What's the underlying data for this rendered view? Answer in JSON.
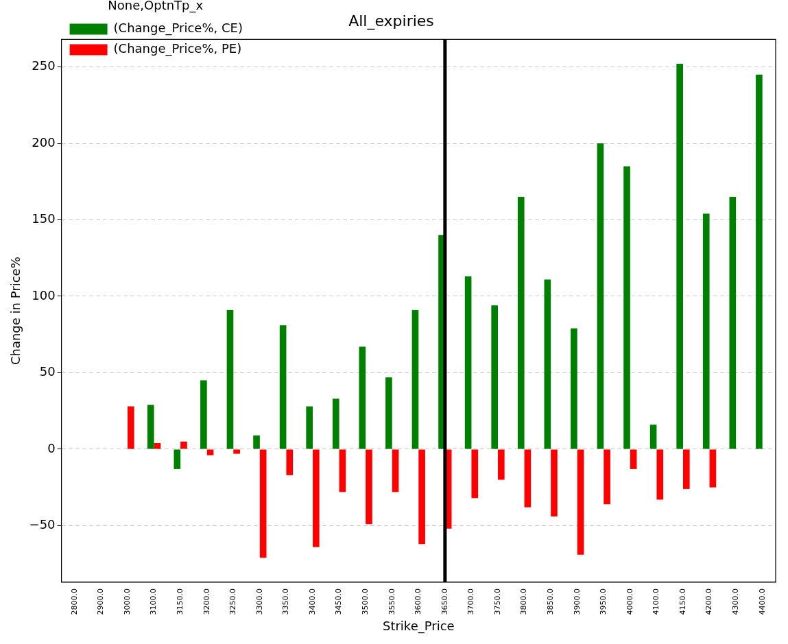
{
  "chart_data": {
    "type": "bar",
    "title": "All_expiries",
    "xlabel": "Strike_Price",
    "ylabel": "Change in Price%",
    "legend_title": "None,OptnTp_x",
    "categories": [
      "2800.0",
      "2900.0",
      "3000.0",
      "3100.0",
      "3150.0",
      "3200.0",
      "3250.0",
      "3300.0",
      "3350.0",
      "3400.0",
      "3450.0",
      "3500.0",
      "3550.0",
      "3600.0",
      "3650.0",
      "3700.0",
      "3750.0",
      "3800.0",
      "3850.0",
      "3900.0",
      "3950.0",
      "4000.0",
      "4100.0",
      "4150.0",
      "4200.0",
      "4300.0",
      "4400.0"
    ],
    "series": [
      {
        "name": "(Change_Price%, CE)",
        "color": "#008000",
        "values": [
          null,
          null,
          null,
          29,
          -13,
          45,
          91,
          9,
          81,
          28,
          33,
          67,
          47,
          91,
          140,
          113,
          94,
          165,
          111,
          79,
          200,
          185,
          16,
          252,
          154,
          165,
          245
        ]
      },
      {
        "name": "(Change_Price%, PE)",
        "color": "#ff0000",
        "values": [
          null,
          null,
          28,
          4,
          5,
          -4,
          -3,
          -71,
          -17,
          -64,
          -28,
          -49,
          -28,
          -62,
          -52,
          -32,
          -20,
          -38,
          -44,
          -69,
          -36,
          -13,
          -33,
          -26,
          -25,
          null,
          null
        ]
      }
    ],
    "ylim": [
      -87,
      268
    ],
    "yticks": [
      {
        "value": -50,
        "label": "−50"
      },
      0,
      50,
      100,
      150,
      200,
      250
    ],
    "grid": "y",
    "legend": "top left",
    "ref_lines": [
      {
        "axis": "x",
        "value": "3650.0",
        "color": "#000000"
      }
    ]
  }
}
